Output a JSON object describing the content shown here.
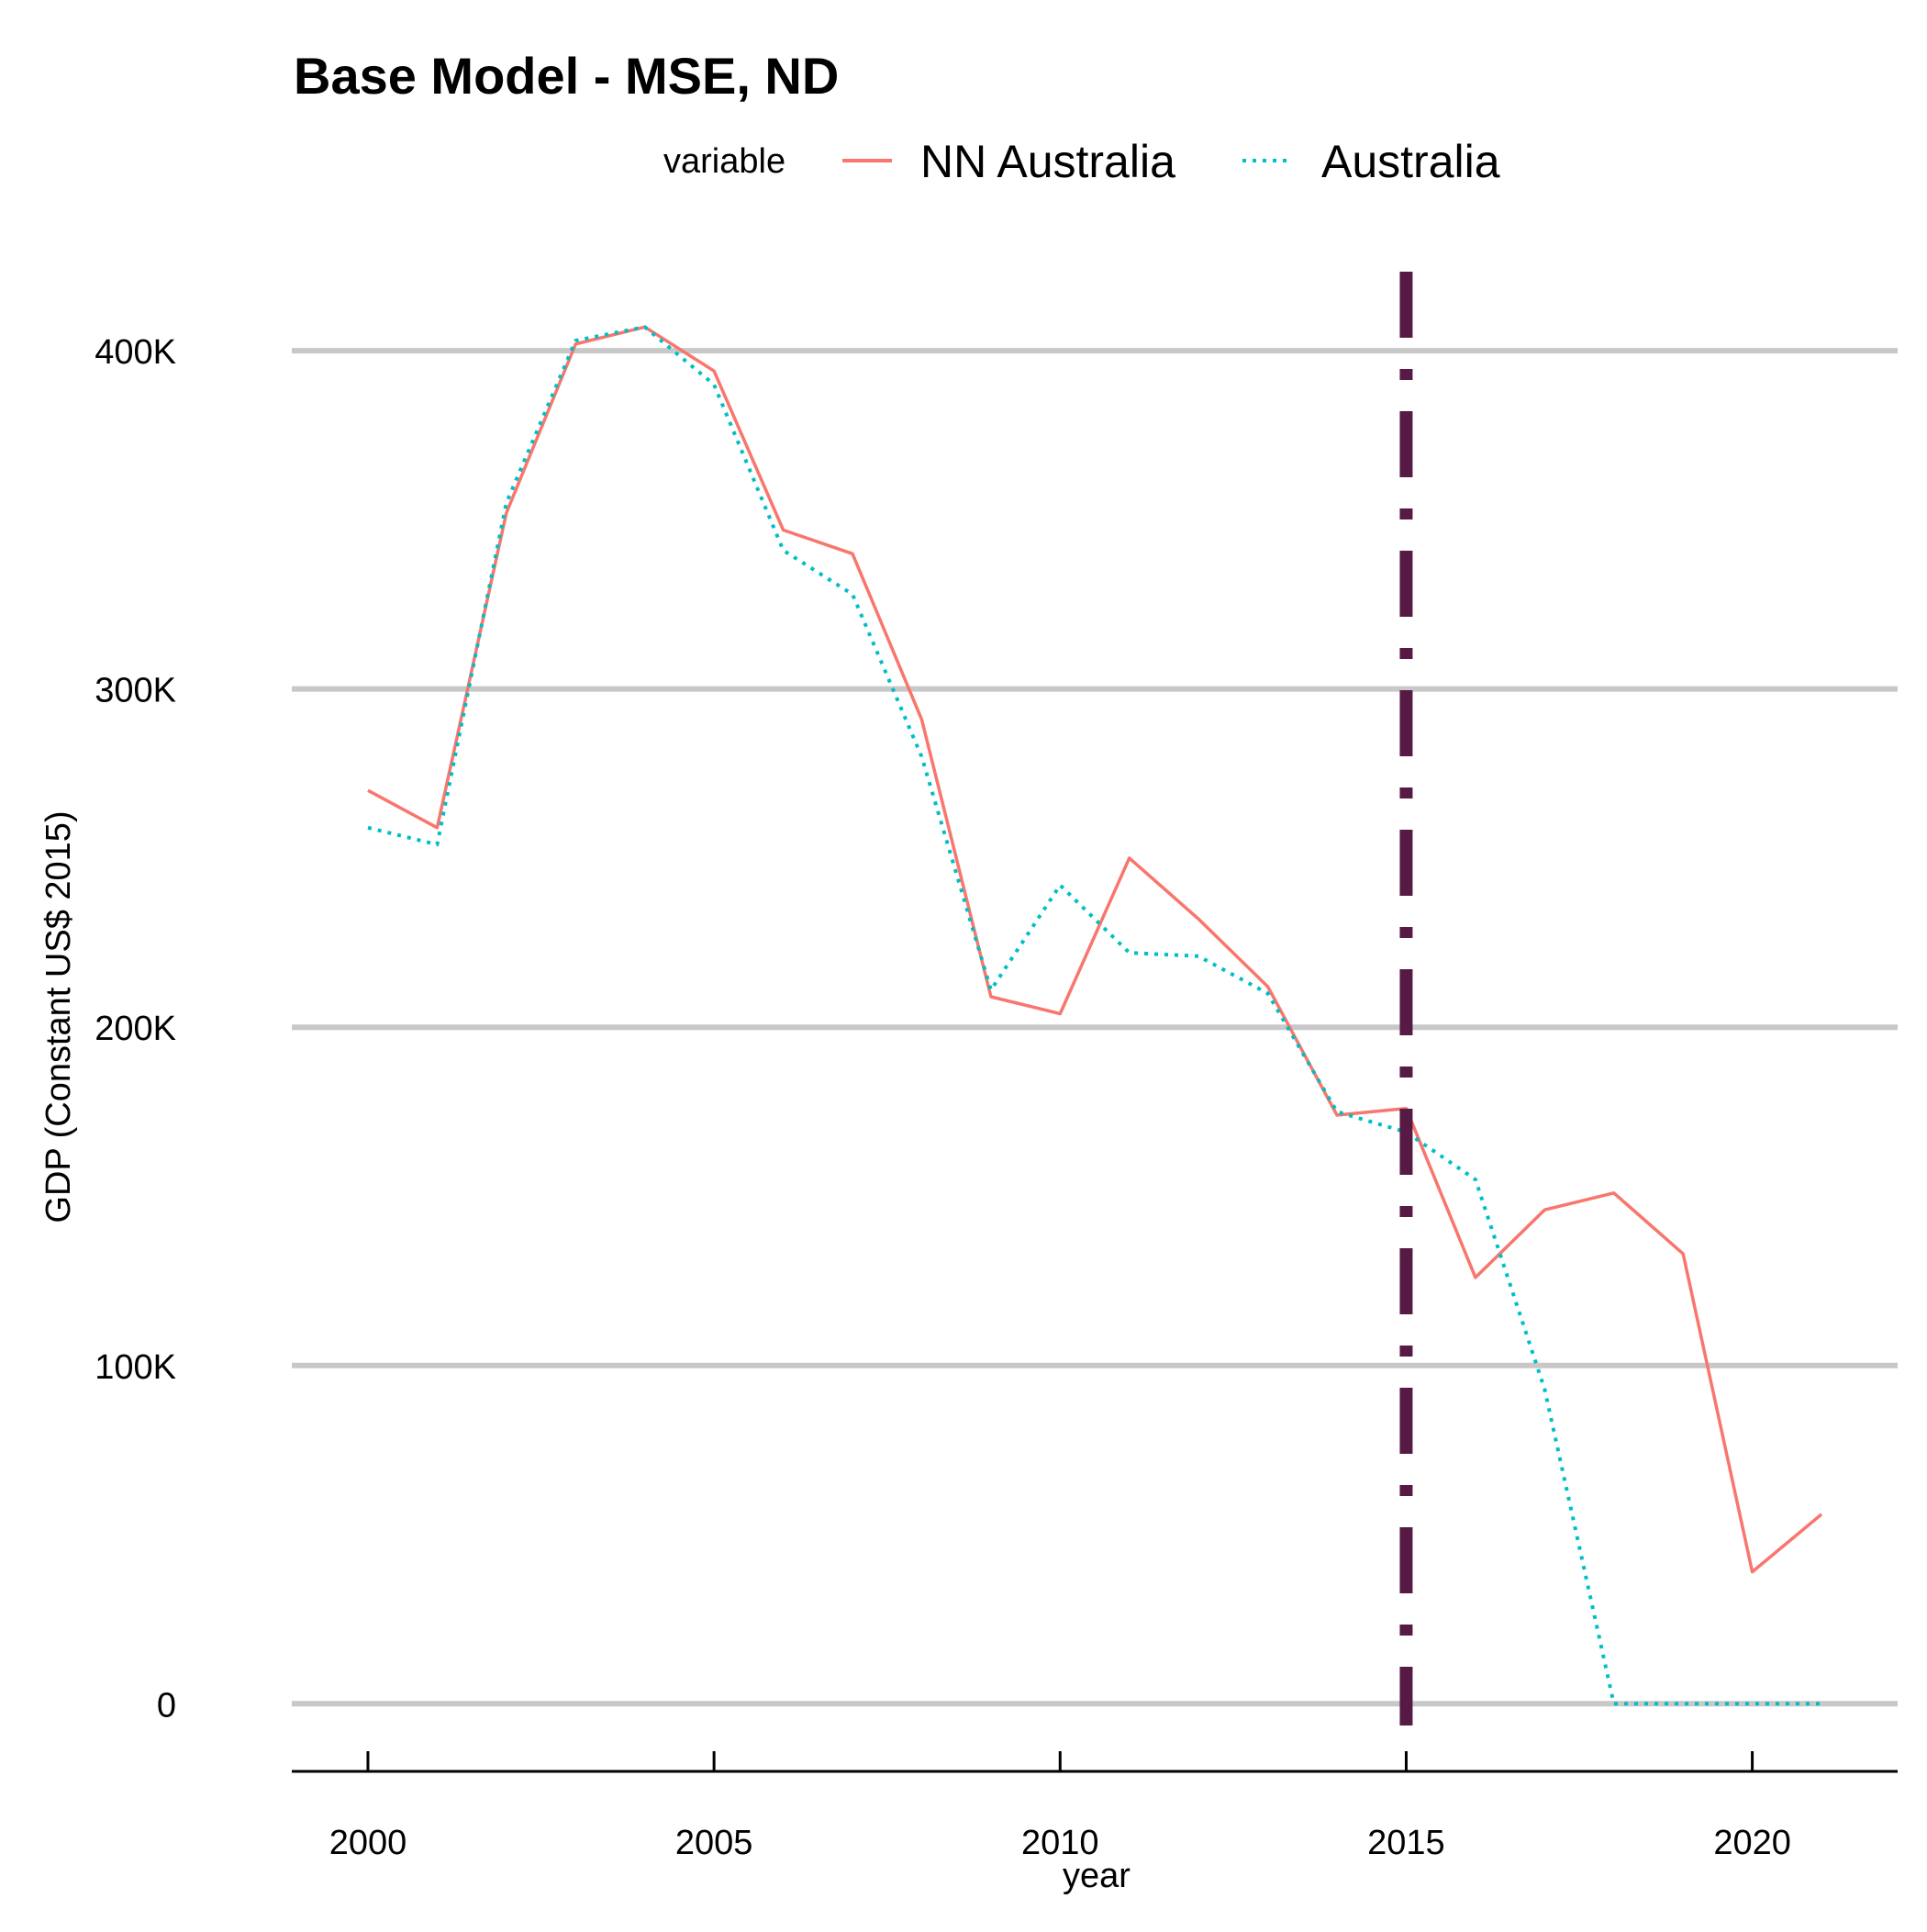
{
  "chart_data": {
    "type": "line",
    "title": "Base Model - MSE, ND",
    "xlabel": "year",
    "ylabel": "GDP (Constant US$ 2015)",
    "legend": {
      "title": "variable",
      "placement": "top"
    },
    "xlim": [
      1998.9,
      2022.1
    ],
    "ylim": [
      -20000,
      425000
    ],
    "x_ticks": [
      2000,
      2005,
      2010,
      2015,
      2020
    ],
    "y_ticks": [
      0,
      100000,
      200000,
      300000,
      400000
    ],
    "y_tick_labels": [
      "0",
      "100K",
      "200K",
      "300K",
      "400K"
    ],
    "grid": {
      "major_y": true,
      "major_x": false
    },
    "x": [
      2000,
      2001,
      2002,
      2003,
      2004,
      2005,
      2006,
      2007,
      2008,
      2009,
      2010,
      2011,
      2012,
      2013,
      2014,
      2015,
      2016,
      2017,
      2018,
      2019,
      2020,
      2021
    ],
    "series": [
      {
        "name": "NN Australia",
        "color": "#F8766D",
        "style": "solid",
        "values": [
          270000,
          259000,
          352000,
          402000,
          407000,
          394000,
          347000,
          340000,
          291000,
          209000,
          204000,
          250000,
          232000,
          212000,
          174000,
          176000,
          126000,
          146000,
          151000,
          133000,
          39000,
          56000
        ]
      },
      {
        "name": "Australia",
        "color": "#00BFC4",
        "style": "dotted",
        "values": [
          259000,
          254000,
          355000,
          403000,
          407000,
          390000,
          341000,
          328000,
          280000,
          211000,
          242000,
          222000,
          221000,
          210000,
          175000,
          169000,
          155000,
          93000,
          0,
          0,
          0,
          0
        ]
      }
    ],
    "reference_line": {
      "x": 2015,
      "color": "#561A45",
      "style": "dotdash"
    }
  }
}
